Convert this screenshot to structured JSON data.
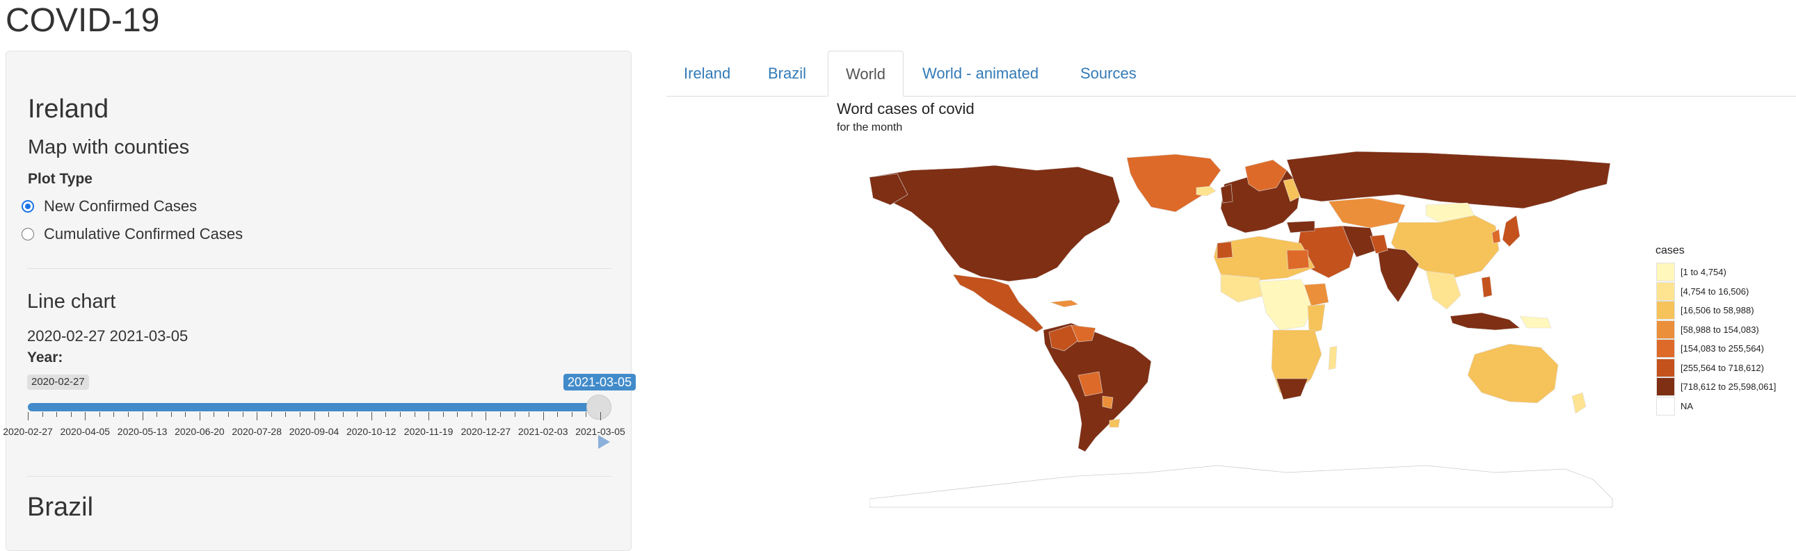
{
  "app": {
    "title": "COVID-19"
  },
  "sidebar": {
    "ireland_heading": "Ireland",
    "map_subheading": "Map with counties",
    "plot_type_label": "Plot Type",
    "radio_options": [
      {
        "label": "New Confirmed Cases",
        "selected": true
      },
      {
        "label": "Cumulative Confirmed Cases",
        "selected": false
      }
    ],
    "line_chart_heading": "Line chart",
    "date_range_text": "2020-02-27 2021-03-05",
    "year_label": "Year:",
    "slider": {
      "min_label": "2020-02-27",
      "max_label": "2021-03-05",
      "value_fraction": 1.0,
      "tick_labels": [
        "2020-02-27",
        "2020-04-05",
        "2020-05-13",
        "2020-06-20",
        "2020-07-28",
        "2020-09-04",
        "2020-10-12",
        "2020-11-19",
        "2020-12-27",
        "2021-02-03",
        "2021-03-05"
      ]
    },
    "brazil_heading": "Brazil"
  },
  "tabs": [
    {
      "label": "Ireland",
      "active": false
    },
    {
      "label": "Brazil",
      "active": false
    },
    {
      "label": "World",
      "active": true
    },
    {
      "label": "World - animated",
      "active": false
    },
    {
      "label": "Sources",
      "active": false
    }
  ],
  "map": {
    "title": "Word cases of covid",
    "subtitle": "for the month",
    "legend": {
      "title": "cases",
      "items": [
        {
          "label": "[1 to 4,754)",
          "color": "#fff7bc"
        },
        {
          "label": "[4,754 to 16,506)",
          "color": "#fee391"
        },
        {
          "label": "[16,506 to 58,988)",
          "color": "#f6c25a"
        },
        {
          "label": "[58,988 to 154,083)",
          "color": "#ec8f3a"
        },
        {
          "label": "[154,083 to 255,564)",
          "color": "#dd6a29"
        },
        {
          "label": "[255,564 to 718,612)",
          "color": "#c4521d"
        },
        {
          "label": "[718,612 to 25,598,061]",
          "color": "#7f2f14"
        },
        {
          "label": "NA",
          "color": "#ffffff"
        }
      ]
    }
  }
}
